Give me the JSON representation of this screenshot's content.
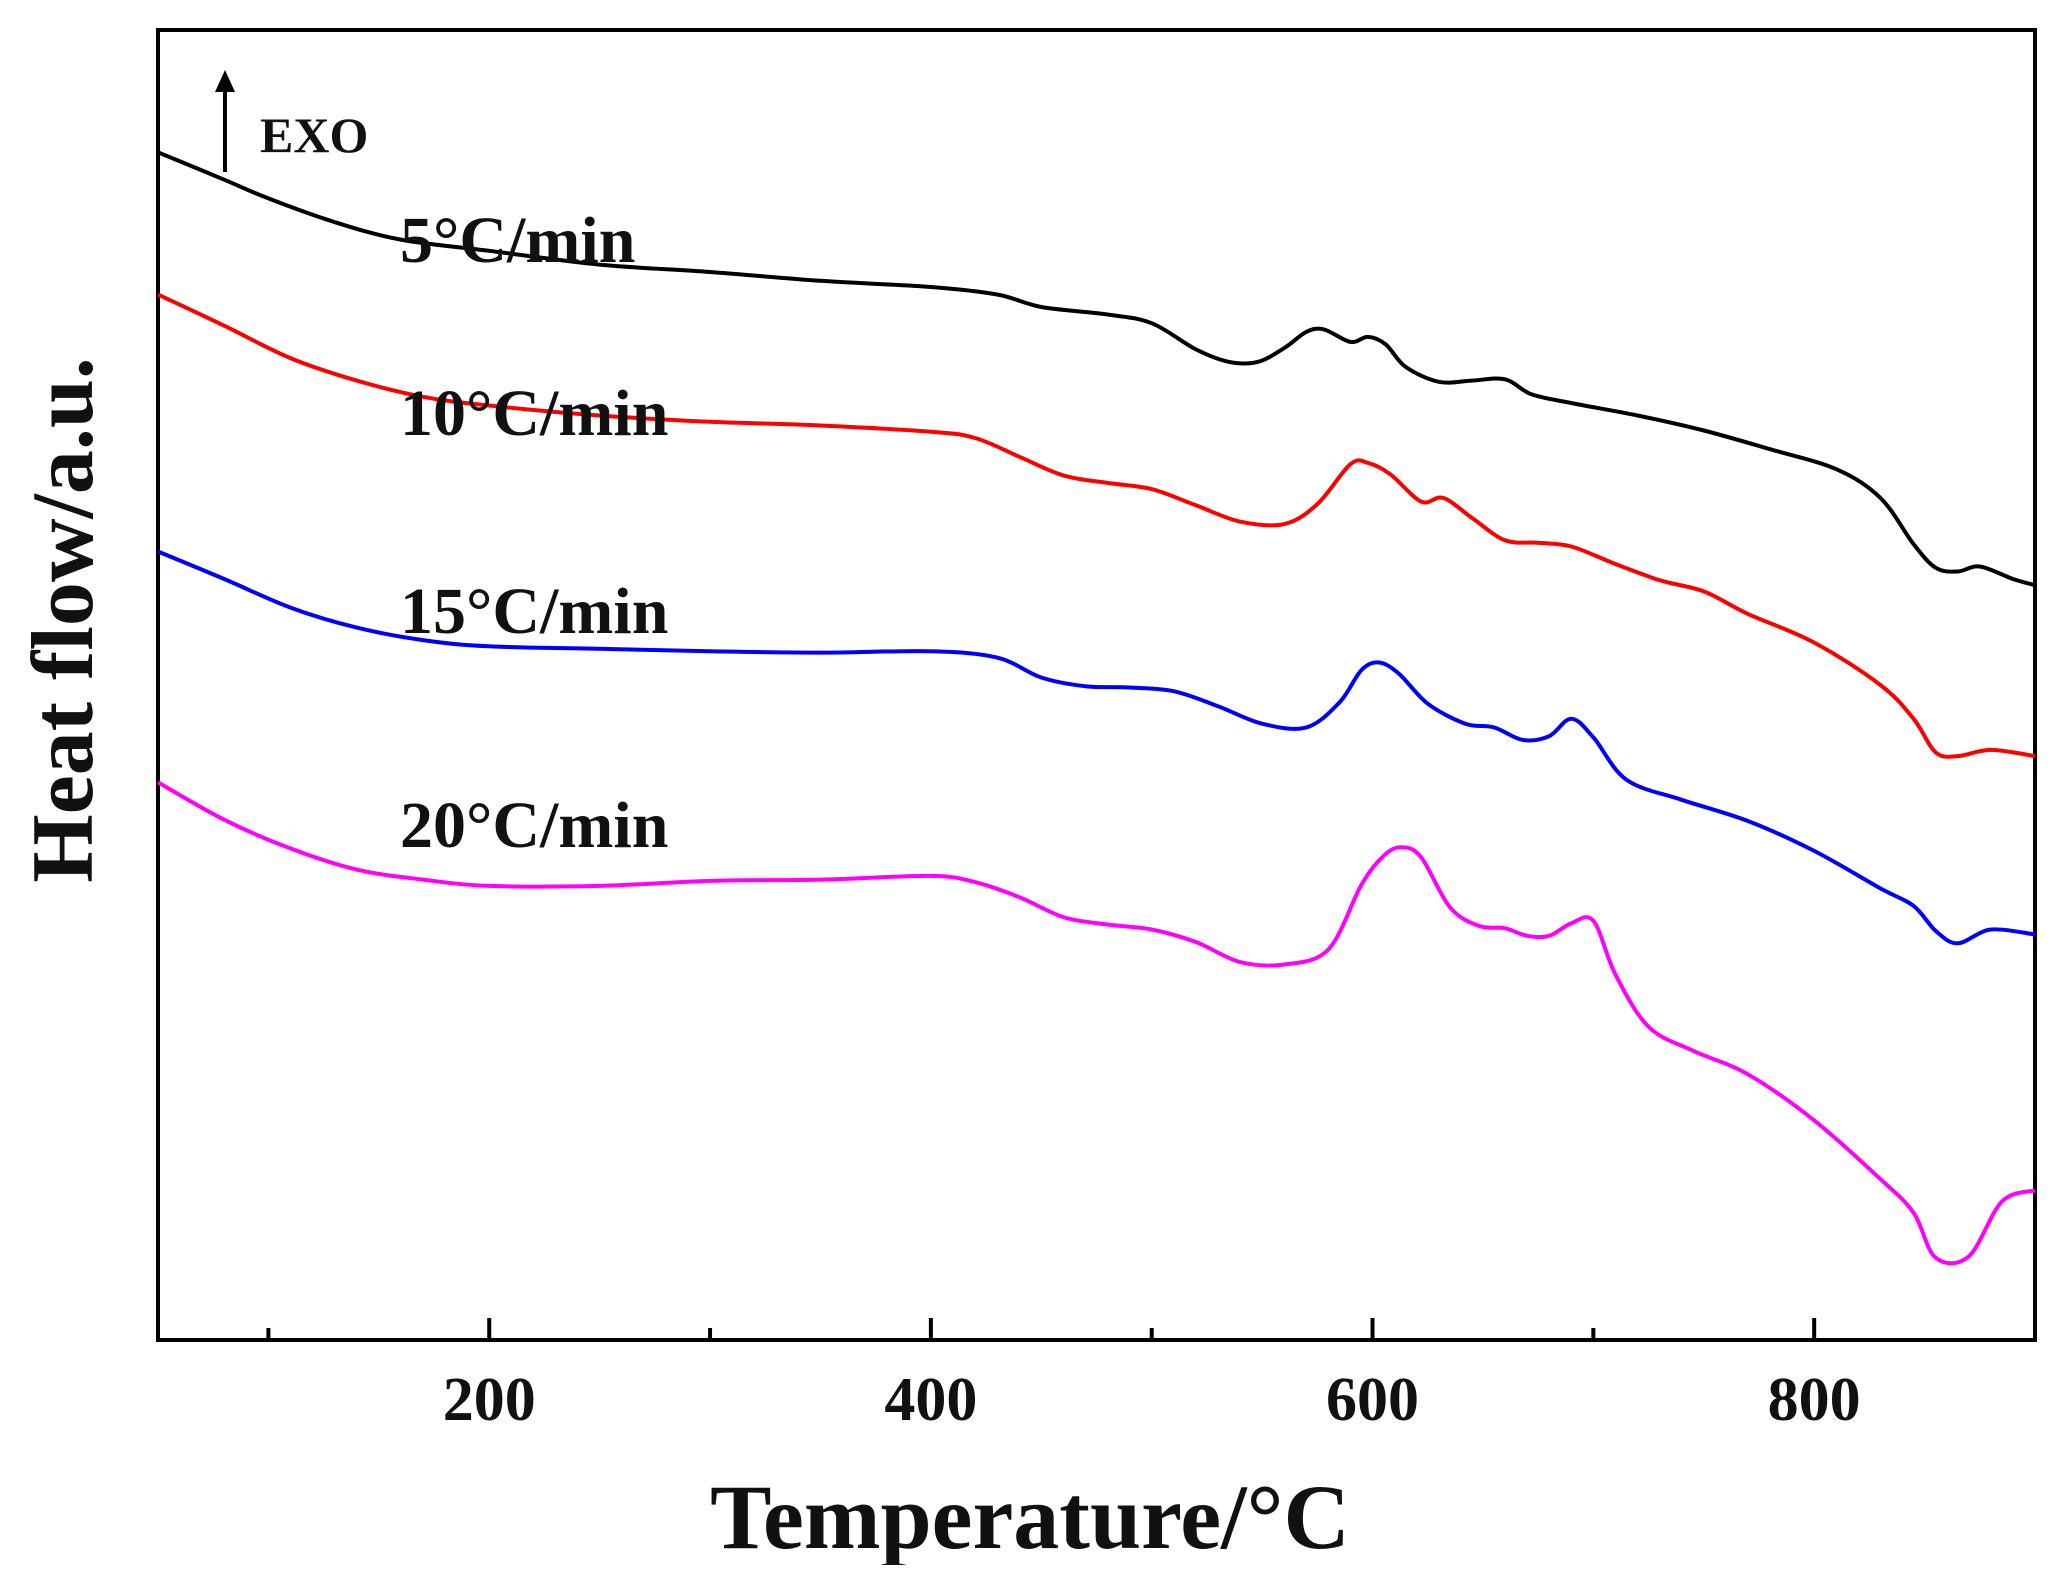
{
  "chart_data": {
    "type": "line",
    "title": "",
    "xlabel": "Temperature/°C",
    "ylabel": "Heat flow/a.u.",
    "xlim": [
      50,
      900
    ],
    "x_ticks": [
      200,
      400,
      600,
      800
    ],
    "x_tick_labels": [
      "200",
      "400",
      "600",
      "800"
    ],
    "x_minor_ticks": [
      100,
      300,
      500,
      700
    ],
    "y_tick_labels": [],
    "grid": false,
    "legend": "none",
    "annotations": [
      {
        "text": "EXO",
        "kind": "exotherm-direction-arrow"
      }
    ],
    "series": [
      {
        "name": "5°C/min",
        "color": "#000000",
        "x": [
          50,
          80,
          100,
          130,
          160,
          200,
          250,
          300,
          350,
          400,
          430,
          450,
          480,
          500,
          520,
          535,
          548,
          560,
          570,
          578,
          590,
          598,
          606,
          615,
          630,
          645,
          660,
          672,
          690,
          720,
          750,
          780,
          810,
          830,
          845,
          855,
          865,
          875,
          890,
          900
        ],
        "y": [
          70.2,
          68.0,
          66.5,
          64.6,
          63.2,
          62.3,
          61.2,
          60.6,
          59.9,
          59.4,
          58.8,
          57.8,
          57.2,
          56.5,
          54.4,
          53.4,
          53.4,
          54.5,
          55.8,
          56.0,
          55.0,
          55.4,
          54.8,
          53.0,
          51.8,
          51.9,
          52.0,
          50.8,
          50.1,
          49.1,
          47.9,
          46.4,
          44.8,
          42.5,
          38.8,
          36.9,
          36.6,
          37.0,
          36.0,
          35.5
        ]
      },
      {
        "name": "10°C/min",
        "color": "#ff0000",
        "x": [
          50,
          80,
          110,
          140,
          170,
          200,
          250,
          300,
          350,
          400,
          420,
          440,
          460,
          480,
          500,
          520,
          540,
          560,
          575,
          590,
          598,
          608,
          622,
          632,
          645,
          660,
          675,
          690,
          710,
          730,
          750,
          770,
          800,
          830,
          845,
          855,
          865,
          880,
          900
        ],
        "y": [
          58.8,
          56.3,
          53.7,
          51.9,
          50.6,
          49.9,
          49.1,
          48.6,
          48.3,
          47.8,
          47.3,
          45.8,
          44.3,
          43.7,
          43.2,
          41.9,
          40.6,
          40.4,
          42.0,
          45.2,
          45.3,
          44.4,
          42.2,
          42.5,
          40.9,
          39.1,
          38.9,
          38.6,
          37.2,
          35.9,
          35.0,
          33.2,
          30.9,
          27.5,
          24.8,
          22.1,
          21.8,
          22.3,
          21.8
        ]
      },
      {
        "name": "15°C/min",
        "color": "#0000ff",
        "x": [
          50,
          80,
          110,
          140,
          170,
          200,
          250,
          300,
          350,
          400,
          430,
          450,
          470,
          490,
          510,
          530,
          550,
          570,
          585,
          595,
          603,
          612,
          625,
          642,
          655,
          668,
          680,
          690,
          700,
          715,
          740,
          770,
          800,
          830,
          845,
          855,
          865,
          880,
          900
        ],
        "y": [
          38.2,
          36.0,
          33.7,
          32.1,
          31.1,
          30.6,
          30.4,
          30.2,
          30.1,
          30.2,
          29.7,
          28.1,
          27.4,
          27.3,
          27.0,
          25.8,
          24.4,
          24.1,
          26.1,
          28.7,
          29.3,
          28.4,
          26.0,
          24.4,
          24.1,
          23.1,
          23.4,
          24.8,
          23.3,
          19.9,
          18.3,
          16.6,
          14.2,
          11.2,
          9.8,
          7.8,
          6.8,
          7.9,
          7.5
        ]
      },
      {
        "name": "20°C/min",
        "color": "#ff00ff",
        "x": [
          50,
          80,
          110,
          140,
          170,
          200,
          250,
          300,
          350,
          400,
          420,
          440,
          460,
          480,
          500,
          520,
          540,
          560,
          580,
          595,
          605,
          613,
          622,
          635,
          648,
          660,
          670,
          680,
          690,
          700,
          710,
          725,
          745,
          770,
          800,
          830,
          845,
          855,
          870,
          885,
          900
        ],
        "y": [
          19.7,
          16.7,
          14.4,
          12.7,
          11.9,
          11.4,
          11.4,
          11.8,
          11.9,
          12.2,
          11.7,
          10.5,
          8.9,
          8.3,
          7.9,
          6.9,
          5.3,
          5.1,
          6.3,
          11.5,
          13.8,
          14.5,
          13.7,
          9.7,
          8.2,
          8.0,
          7.4,
          7.4,
          8.4,
          8.6,
          4.3,
          0.1,
          -1.8,
          -3.7,
          -7.4,
          -12.1,
          -14.8,
          -18.4,
          -18.3,
          -13.9,
          -13.0
        ]
      }
    ],
    "series_label_colors": {
      "text": "#111111"
    }
  }
}
